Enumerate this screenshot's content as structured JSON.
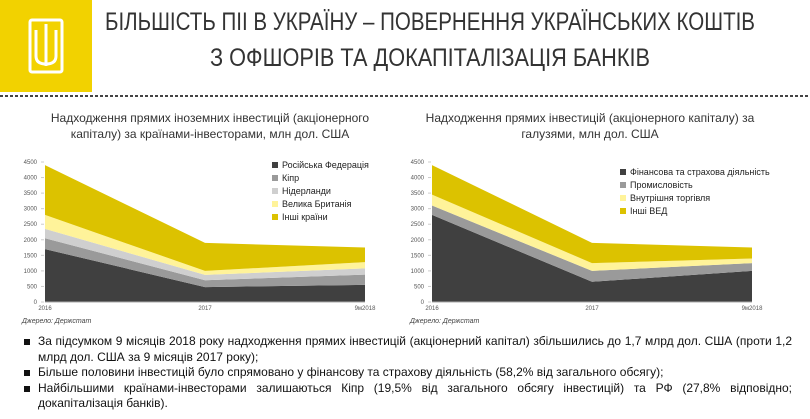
{
  "header": {
    "title_lines": [
      "БІЛЬШІСТЬ ПІІ В УКРАЇНУ – ПОВЕРНЕННЯ УКРАЇНСЬКИХ КОШТІВ",
      "З ОФШОРІВ ТА ДОКАПІТАЛІЗАЦІЯ БАНКІВ"
    ]
  },
  "chart_data": [
    {
      "type": "stacked-area",
      "title": "Надходження прямих іноземних інвестицій (акціонерного капіталу) за країнами-інвесторами, млн дол. США",
      "source": "Джерело: Держстат",
      "categories": [
        "2016",
        "2017",
        "9м2018"
      ],
      "series": [
        {
          "name": "Російська Федерація",
          "color": "#404040",
          "values": [
            1700,
            480,
            550
          ]
        },
        {
          "name": "Кіпр",
          "color": "#9a9a9a",
          "values": [
            350,
            220,
            330
          ]
        },
        {
          "name": "Нідерланди",
          "color": "#cfcfcf",
          "values": [
            300,
            170,
            200
          ]
        },
        {
          "name": "Велика Британія",
          "color": "#fff39a",
          "values": [
            450,
            130,
            200
          ]
        },
        {
          "name": "Інші країни",
          "color": "#dcc200",
          "values": [
            1600,
            900,
            470
          ]
        }
      ],
      "ylim": [
        0,
        4500
      ],
      "yticks": [
        0,
        500,
        1000,
        1500,
        2000,
        2500,
        3000,
        3500,
        4000,
        4500
      ]
    },
    {
      "type": "stacked-area",
      "title": "Надходження прямих інвестицій (акціонерного капіталу) за галузями, млн дол. США",
      "source": "Джерело: Держстат",
      "categories": [
        "2016",
        "2017",
        "9м2018"
      ],
      "series": [
        {
          "name": "Фінансова та страхова діяльність",
          "color": "#404040",
          "values": [
            2800,
            650,
            1000
          ]
        },
        {
          "name": "Промисловість",
          "color": "#9a9a9a",
          "values": [
            300,
            350,
            250
          ]
        },
        {
          "name": "Внутрішня торгівля",
          "color": "#fff39a",
          "values": [
            350,
            250,
            150
          ]
        },
        {
          "name": "Інші ВЕД",
          "color": "#dcc200",
          "values": [
            950,
            650,
            350
          ]
        }
      ],
      "ylim": [
        0,
        4500
      ],
      "yticks": [
        0,
        500,
        1000,
        1500,
        2000,
        2500,
        3000,
        3500,
        4000,
        4500
      ]
    }
  ],
  "bullets": [
    "За підсумком 9 місяців 2018 року надходження прямих інвестицій (акціонерний капітал) збільшились до 1,7 млрд дол. США (проти 1,2 млрд дол. США за 9 місяців 2017 року);",
    "Більше половини інвестицій було спрямовано у фінансову та страхову діяльність (58,2% від загального обсягу);",
    "Найбільшими країнами-інвесторами залишаються Кіпр (19,5% від загального обсягу інвестицій) та РФ (27,8% відповідно; докапіталізація банків)."
  ]
}
